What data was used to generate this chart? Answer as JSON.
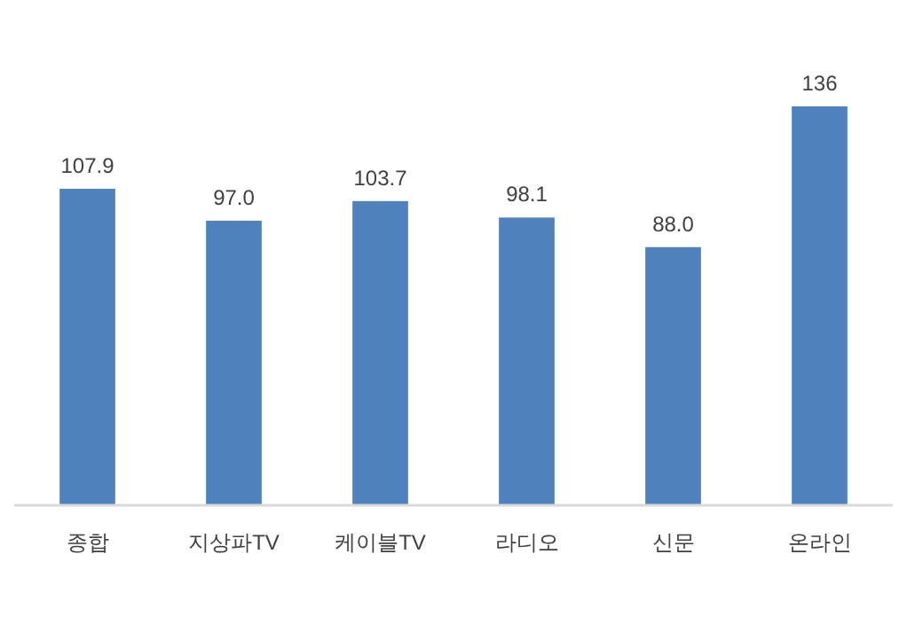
{
  "chart_data": {
    "type": "bar",
    "categories": [
      "종합",
      "지상파TV",
      "케이블TV",
      "라디오",
      "신문",
      "온라인"
    ],
    "values": [
      107.9,
      97.0,
      103.7,
      98.1,
      88.0,
      136
    ],
    "value_labels": [
      "107.9",
      "97.0",
      "103.7",
      "98.1",
      "88.0",
      "136"
    ],
    "color": "#4f81bd"
  }
}
